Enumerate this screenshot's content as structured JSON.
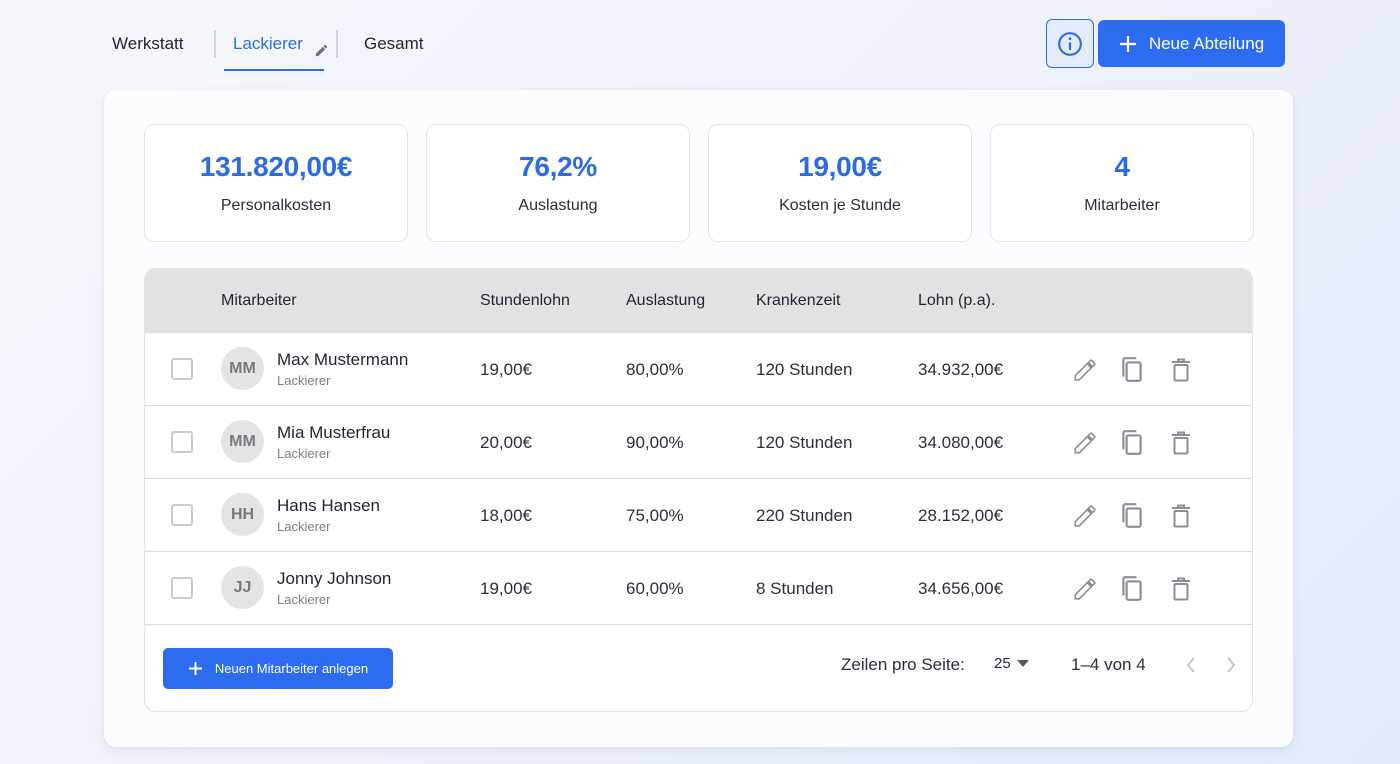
{
  "tabs": [
    {
      "label": "Werkstatt"
    },
    {
      "label": "Lackierer"
    },
    {
      "label": "Gesamt"
    }
  ],
  "header": {
    "new_department_label": "Neue Abteilung"
  },
  "kpis": [
    {
      "value": "131.820,00€",
      "label": "Personalkosten"
    },
    {
      "value": "76,2%",
      "label": "Auslastung"
    },
    {
      "value": "19,00€",
      "label": "Kosten je Stunde"
    },
    {
      "value": "4",
      "label": "Mitarbeiter"
    }
  ],
  "table": {
    "columns": [
      "Mitarbeiter",
      "Stundenlohn",
      "Auslastung",
      "Krankenzeit",
      "Lohn (p.a)."
    ],
    "rows": [
      {
        "initials": "MM",
        "name": "Max Mustermann",
        "role": "Lackierer",
        "wage": "19,00€",
        "utilization": "80,00%",
        "sick": "120 Stunden",
        "pay": "34.932,00€"
      },
      {
        "initials": "MM",
        "name": "Mia Musterfrau",
        "role": "Lackierer",
        "wage": "20,00€",
        "utilization": "90,00%",
        "sick": "120 Stunden",
        "pay": "34.080,00€"
      },
      {
        "initials": "HH",
        "name": "Hans Hansen",
        "role": "Lackierer",
        "wage": "18,00€",
        "utilization": "75,00%",
        "sick": "220 Stunden",
        "pay": "28.152,00€"
      },
      {
        "initials": "JJ",
        "name": "Jonny Johnson",
        "role": "Lackierer",
        "wage": "19,00€",
        "utilization": "60,00%",
        "sick": "8 Stunden",
        "pay": "34.656,00€"
      }
    ]
  },
  "footer": {
    "add_employee_label": "Neuen Mitarbeiter anlegen",
    "rows_per_page_label": "Zeilen pro Seite:",
    "rows_per_page_value": "25",
    "range_label": "1–4 von 4"
  },
  "colors": {
    "accent": "#2d6cf0",
    "header_row": "#e2e2e2"
  }
}
